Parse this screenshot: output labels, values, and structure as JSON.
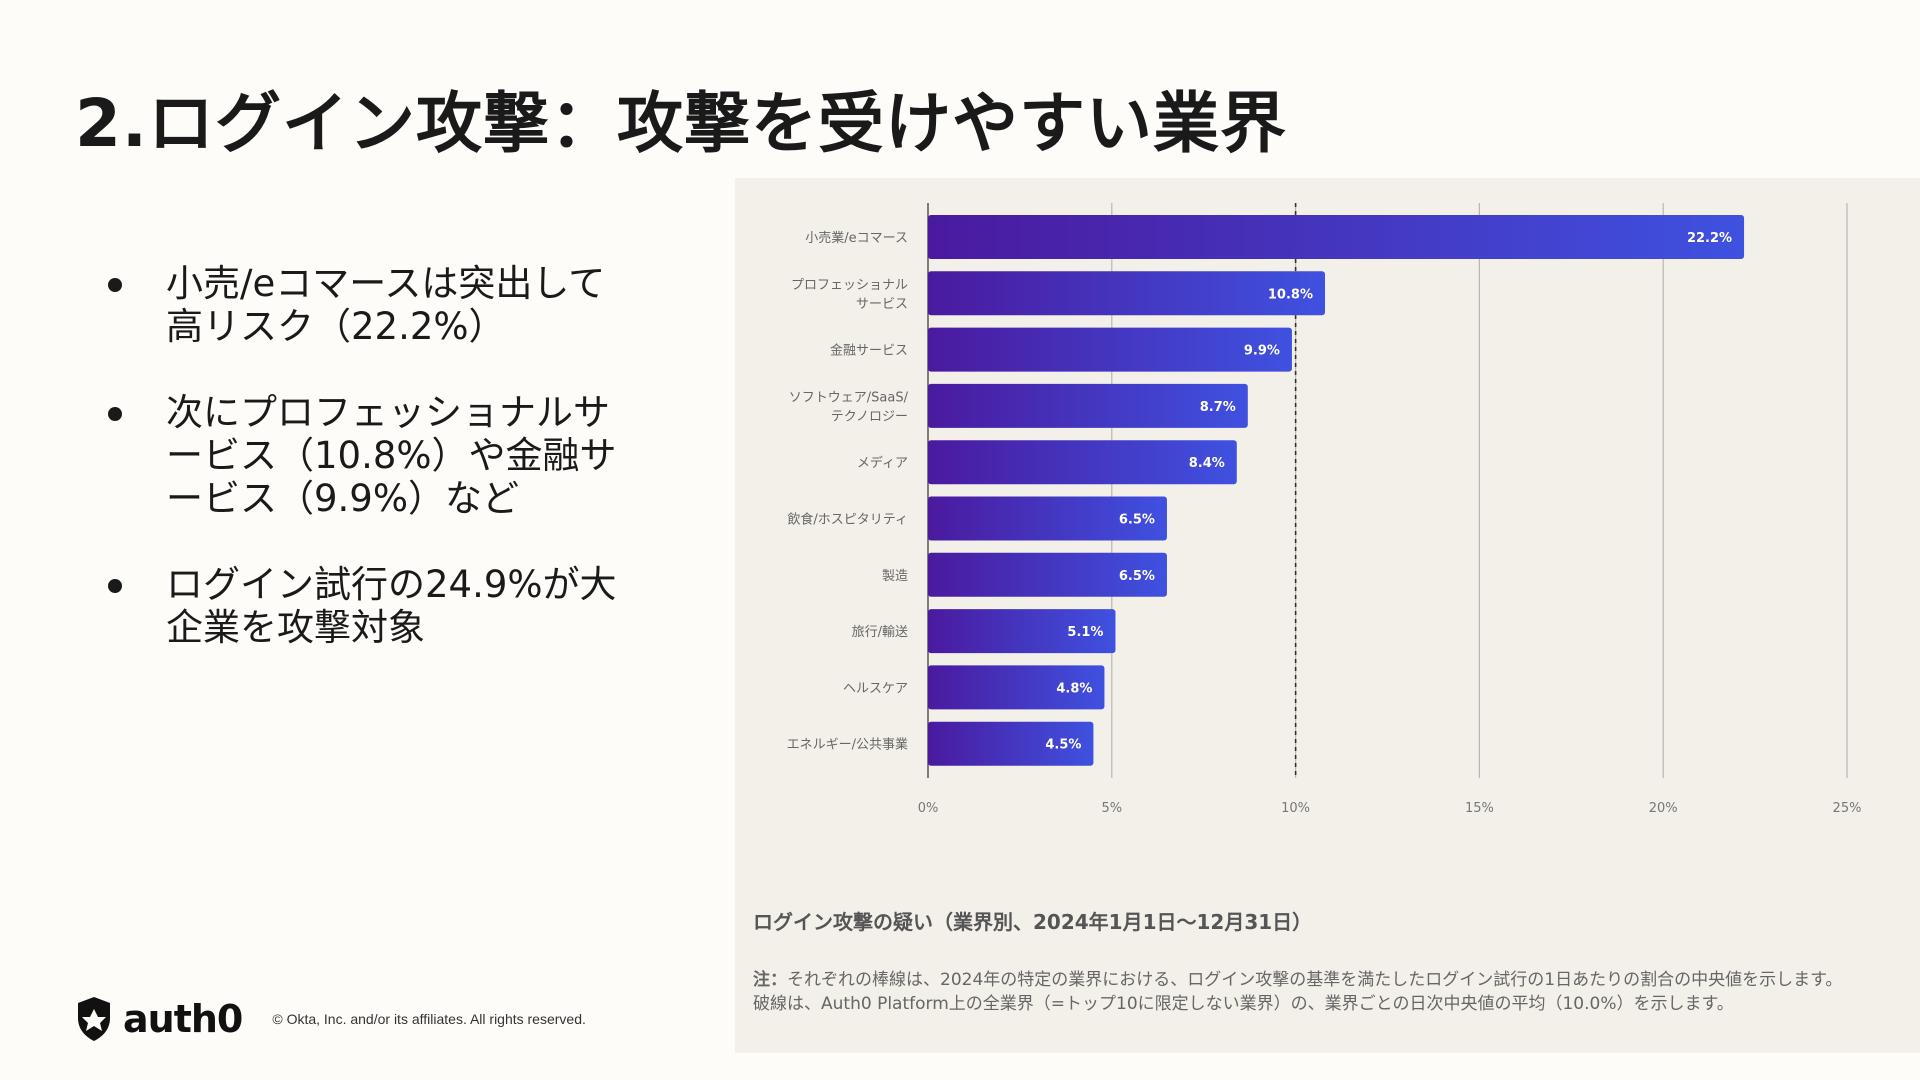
{
  "slide": {
    "title": "2.ログイン攻撃：攻撃を受けやすい業界"
  },
  "bullets": [
    {
      "text": "小売/eコマースは突出して高リスク（22.2%）"
    },
    {
      "text": "次にプロフェッショナルサービス（10.8%）や金融サービス（9.9%）など"
    },
    {
      "text": "ログイン試行の24.9%が大企業を攻撃対象"
    }
  ],
  "chart_data": {
    "type": "bar",
    "orientation": "horizontal",
    "categories": [
      [
        "小売業/eコマース"
      ],
      [
        "プロフェッショナル",
        "サービス"
      ],
      [
        "金融サービス"
      ],
      [
        "ソフトウェア/SaaS/",
        "テクノロジー"
      ],
      [
        "メディア"
      ],
      [
        "飲食/ホスピタリティ"
      ],
      [
        "製造"
      ],
      [
        "旅行/輸送"
      ],
      [
        "ヘルスケア"
      ],
      [
        "エネルギー/公共事業"
      ]
    ],
    "values": [
      22.2,
      10.8,
      9.9,
      8.7,
      8.4,
      6.5,
      6.5,
      5.1,
      4.8,
      4.5
    ],
    "value_labels": [
      "22.2%",
      "10.8%",
      "9.9%",
      "8.7%",
      "8.4%",
      "6.5%",
      "6.5%",
      "5.1%",
      "4.8%",
      "4.5%"
    ],
    "xlim": [
      0,
      25
    ],
    "xticks": [
      0,
      5,
      10,
      15,
      20,
      25
    ],
    "xtick_labels": [
      "0%",
      "5%",
      "10%",
      "15%",
      "20%",
      "25%"
    ],
    "reference_line": 10,
    "grid": true,
    "colors": {
      "bar_start": "#4a1a9e",
      "bar_end": "#3f51e0",
      "grid": "#b8b6b1",
      "reference": "#333333",
      "panel": "#f3f0ea"
    },
    "caption": "ログイン攻撃の疑い（業界別、2024年1月1日〜12月31日）",
    "note_label": "注：",
    "note_line1": "それぞれの棒線は、2024年の特定の業界における、ログイン攻撃の基準を満たしたログイン試行の1日あたりの割合の中央値を示します。",
    "note_line2": "破線は、Auth0 Platform上の全業界（=トップ10に限定しない業界）の、業界ごとの日次中央値の平均（10.0%）を示します。"
  },
  "footer": {
    "logo_text": "auth0",
    "copyright": "© Okta, Inc. and/or its affiliates. All rights reserved.",
    "logo_icon": "auth0-shield-icon"
  }
}
